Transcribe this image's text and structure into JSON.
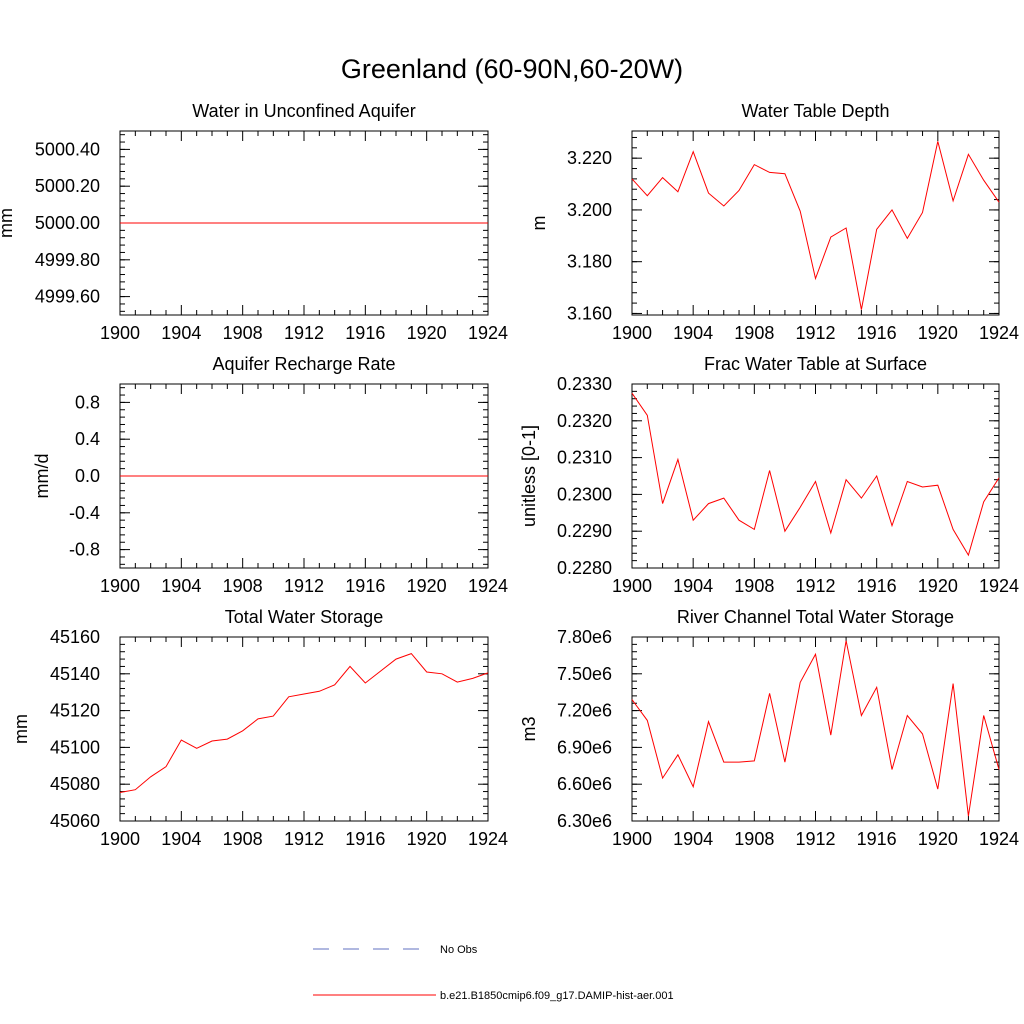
{
  "title": "Greenland (60-90N,60-20W)",
  "colors": {
    "model_line": "#ff0000",
    "obs_line": "#6070c0",
    "axis": "#000000"
  },
  "legend": [
    {
      "label": "No Obs",
      "style": "dashed",
      "color": "#6070c0"
    },
    {
      "label": "b.e21.B1850cmip6.f09_g17.DAMIP-hist-aer.001",
      "style": "solid",
      "color": "#ff0000"
    }
  ],
  "chart_data": [
    {
      "type": "line",
      "title": "Water in Unconfined Aquifer",
      "ylabel": "mm",
      "xlim": [
        1900,
        1924
      ],
      "ylim": [
        4999.5,
        5000.5
      ],
      "xticks": [
        "1900",
        "1904",
        "1908",
        "1912",
        "1916",
        "1920",
        "1924"
      ],
      "yticks": [
        {
          "v": 4999.6,
          "label": "4999.60"
        },
        {
          "v": 4999.8,
          "label": "4999.80"
        },
        {
          "v": 5000.0,
          "label": "5000.00"
        },
        {
          "v": 5000.2,
          "label": "5000.20"
        },
        {
          "v": 5000.4,
          "label": "5000.40"
        }
      ],
      "x": [
        1900,
        1901,
        1902,
        1903,
        1904,
        1905,
        1906,
        1907,
        1908,
        1909,
        1910,
        1911,
        1912,
        1913,
        1914,
        1915,
        1916,
        1917,
        1918,
        1919,
        1920,
        1921,
        1922,
        1923,
        1924
      ],
      "series": [
        {
          "values": [
            5000,
            5000,
            5000,
            5000,
            5000,
            5000,
            5000,
            5000,
            5000,
            5000,
            5000,
            5000,
            5000,
            5000,
            5000,
            5000,
            5000,
            5000,
            5000,
            5000,
            5000,
            5000,
            5000,
            5000,
            5000
          ]
        }
      ]
    },
    {
      "type": "line",
      "title": "Water Table Depth",
      "ylabel": "m",
      "xlim": [
        1900,
        1924
      ],
      "ylim": [
        3.1594,
        3.2305
      ],
      "xticks": [
        "1900",
        "1904",
        "1908",
        "1912",
        "1916",
        "1920",
        "1924"
      ],
      "yticks": [
        {
          "v": 3.16,
          "label": "3.160"
        },
        {
          "v": 3.18,
          "label": "3.180"
        },
        {
          "v": 3.2,
          "label": "3.200"
        },
        {
          "v": 3.22,
          "label": "3.220"
        }
      ],
      "x": [
        1900,
        1901,
        1902,
        1903,
        1904,
        1905,
        1906,
        1907,
        1908,
        1909,
        1910,
        1911,
        1912,
        1913,
        1914,
        1915,
        1916,
        1917,
        1918,
        1919,
        1920,
        1921,
        1922,
        1923,
        1924
      ],
      "series": [
        {
          "values": [
            3.212,
            3.2055,
            3.2125,
            3.207,
            3.2225,
            3.2065,
            3.2015,
            3.2075,
            3.2175,
            3.2145,
            3.214,
            3.1995,
            3.1735,
            3.1895,
            3.193,
            3.1615,
            3.1925,
            3.2,
            3.189,
            3.199,
            3.2265,
            3.2035,
            3.2215,
            3.2115,
            3.203
          ]
        }
      ]
    },
    {
      "type": "line",
      "title": "Aquifer Recharge Rate",
      "ylabel": "mm/d",
      "xlim": [
        1900,
        1924
      ],
      "ylim": [
        -1.0,
        1.0
      ],
      "xticks": [
        "1900",
        "1904",
        "1908",
        "1912",
        "1916",
        "1920",
        "1924"
      ],
      "yticks": [
        {
          "v": -0.8,
          "label": "-0.8"
        },
        {
          "v": -0.4,
          "label": "-0.4"
        },
        {
          "v": 0.0,
          "label": "0.0"
        },
        {
          "v": 0.4,
          "label": "0.4"
        },
        {
          "v": 0.8,
          "label": "0.8"
        }
      ],
      "x": [
        1900,
        1901,
        1902,
        1903,
        1904,
        1905,
        1906,
        1907,
        1908,
        1909,
        1910,
        1911,
        1912,
        1913,
        1914,
        1915,
        1916,
        1917,
        1918,
        1919,
        1920,
        1921,
        1922,
        1923,
        1924
      ],
      "series": [
        {
          "values": [
            0,
            0,
            0,
            0,
            0,
            0,
            0,
            0,
            0,
            0,
            0,
            0,
            0,
            0,
            0,
            0,
            0,
            0,
            0,
            0,
            0,
            0,
            0,
            0,
            0
          ]
        }
      ]
    },
    {
      "type": "line",
      "title": "Frac Water Table at Surface",
      "ylabel": "unitless [0-1]",
      "xlim": [
        1900,
        1924
      ],
      "ylim": [
        0.228,
        0.233
      ],
      "xticks": [
        "1900",
        "1904",
        "1908",
        "1912",
        "1916",
        "1920",
        "1924"
      ],
      "yticks": [
        {
          "v": 0.228,
          "label": "0.2280"
        },
        {
          "v": 0.229,
          "label": "0.2290"
        },
        {
          "v": 0.23,
          "label": "0.2300"
        },
        {
          "v": 0.231,
          "label": "0.2310"
        },
        {
          "v": 0.232,
          "label": "0.2320"
        },
        {
          "v": 0.233,
          "label": "0.2330"
        }
      ],
      "x": [
        1900,
        1901,
        1902,
        1903,
        1904,
        1905,
        1906,
        1907,
        1908,
        1909,
        1910,
        1911,
        1912,
        1913,
        1914,
        1915,
        1916,
        1917,
        1918,
        1919,
        1920,
        1921,
        1922,
        1923,
        1924
      ],
      "series": [
        {
          "values": [
            0.23275,
            0.23215,
            0.22975,
            0.23095,
            0.2293,
            0.22975,
            0.2299,
            0.2293,
            0.22905,
            0.23065,
            0.229,
            0.22965,
            0.23035,
            0.22895,
            0.2304,
            0.2299,
            0.2305,
            0.22915,
            0.23035,
            0.2302,
            0.23025,
            0.22905,
            0.22835,
            0.2298,
            0.23045
          ]
        }
      ]
    },
    {
      "type": "line",
      "title": "Total Water Storage",
      "ylabel": "mm",
      "xlim": [
        1900,
        1924
      ],
      "ylim": [
        45060,
        45160
      ],
      "xticks": [
        "1900",
        "1904",
        "1908",
        "1912",
        "1916",
        "1920",
        "1924"
      ],
      "yticks": [
        {
          "v": 45060,
          "label": "45060"
        },
        {
          "v": 45080,
          "label": "45080"
        },
        {
          "v": 45100,
          "label": "45100"
        },
        {
          "v": 45120,
          "label": "45120"
        },
        {
          "v": 45140,
          "label": "45140"
        },
        {
          "v": 45160,
          "label": "45160"
        }
      ],
      "x": [
        1900,
        1901,
        1902,
        1903,
        1904,
        1905,
        1906,
        1907,
        1908,
        1909,
        1910,
        1911,
        1912,
        1913,
        1914,
        1915,
        1916,
        1917,
        1918,
        1919,
        1920,
        1921,
        1922,
        1923,
        1924
      ],
      "series": [
        {
          "values": [
            45075.5,
            45077,
            45084,
            45089.5,
            45104,
            45099.5,
            45103.5,
            45104.5,
            45109,
            45115.5,
            45117,
            45127.5,
            45129,
            45130.5,
            45134,
            45144,
            45135,
            45141.5,
            45148,
            45151,
            45141,
            45140,
            45135.5,
            45137.5,
            45140.5
          ]
        }
      ]
    },
    {
      "type": "line",
      "title": "River Channel Total Water Storage",
      "ylabel": "m3",
      "xlim": [
        1900,
        1924
      ],
      "ylim": [
        6300000,
        7800000
      ],
      "xticks": [
        "1900",
        "1904",
        "1908",
        "1912",
        "1916",
        "1920",
        "1924"
      ],
      "yticks": [
        {
          "v": 6300000,
          "label": "6.30e6"
        },
        {
          "v": 6600000,
          "label": "6.60e6"
        },
        {
          "v": 6900000,
          "label": "6.90e6"
        },
        {
          "v": 7200000,
          "label": "7.20e6"
        },
        {
          "v": 7500000,
          "label": "7.50e6"
        },
        {
          "v": 7800000,
          "label": "7.80e6"
        }
      ],
      "x": [
        1900,
        1901,
        1902,
        1903,
        1904,
        1905,
        1906,
        1907,
        1908,
        1909,
        1910,
        1911,
        1912,
        1913,
        1914,
        1915,
        1916,
        1917,
        1918,
        1919,
        1920,
        1921,
        1922,
        1923,
        1924
      ],
      "series": [
        {
          "values": [
            7290000,
            7120000,
            6650000,
            6840000,
            6580000,
            7110000,
            6780000,
            6780000,
            6790000,
            7340000,
            6780000,
            7430000,
            7660000,
            7000000,
            7770000,
            7160000,
            7390000,
            6720000,
            7160000,
            7010000,
            6560000,
            7420000,
            6340000,
            7160000,
            6720000
          ]
        }
      ]
    }
  ]
}
